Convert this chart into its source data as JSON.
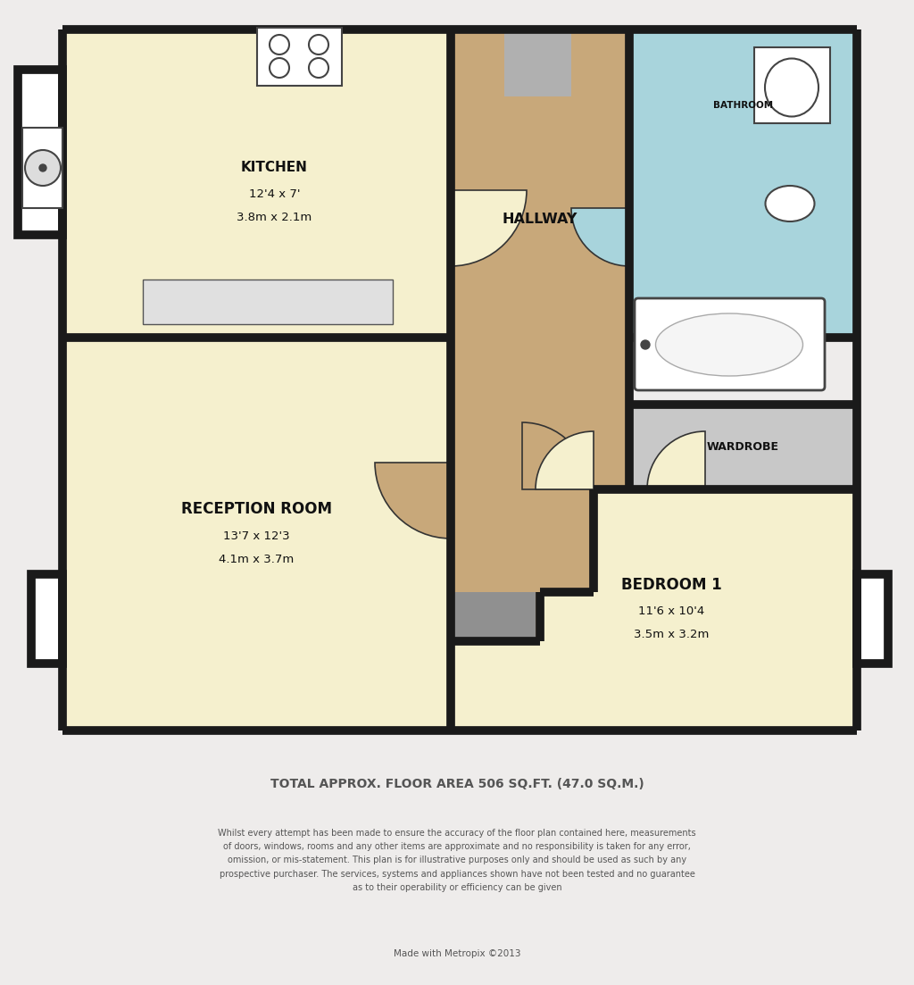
{
  "bg_color": "#eeeceb",
  "wall_color": "#1a1a1a",
  "wall_lw": 7,
  "kitchen_color": "#f5f0ce",
  "reception_color": "#f5f0ce",
  "bedroom_color": "#f5f0ce",
  "hallway_color": "#c8a87a",
  "bathroom_color": "#a8d4dc",
  "wardrobe_color": "#c8c8c8",
  "footer_title": "TOTAL APPROX. FLOOR AREA 506 SQ.FT. (47.0 SQ.M.)",
  "footer_body": "Whilst every attempt has been made to ensure the accuracy of the floor plan contained here, measurements\nof doors, windows, rooms and any other items are approximate and no responsibility is taken for any error,\nomission, or mis-statement. This plan is for illustrative purposes only and should be used as such by any\nprospective purchaser. The services, systems and appliances shown have not been tested and no guarantee\nas to their operability or efficiency can be given",
  "footer_credit": "Made with Metropix ©2013",
  "rooms": {
    "kitchen": {
      "label": "KITCHEN",
      "dims": "12'4 x 7'",
      "metric": "3.8m x 2.1m"
    },
    "reception": {
      "label": "RECEPTION ROOM",
      "dims": "13'7 x 12'3",
      "metric": "4.1m x 3.7m"
    },
    "bedroom": {
      "label": "BEDROOM 1",
      "dims": "11'6 x 10'4",
      "metric": "3.5m x 3.2m"
    },
    "hallway": {
      "label": "HALLWAY"
    },
    "bathroom": {
      "label": "BATHROOM"
    },
    "wardrobe": {
      "label": "WARDROBE"
    }
  }
}
